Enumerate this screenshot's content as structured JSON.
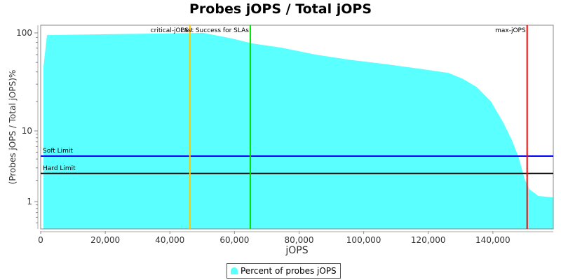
{
  "chart_data": {
    "type": "area",
    "title": "Probes jOPS / Total jOPS",
    "xlabel": "jOPS",
    "ylabel": "(Probes jOPS / Total jOPS)%",
    "xlim": [
      0,
      158700
    ],
    "ylim": [
      0.41,
      120
    ],
    "y_scale": "log",
    "x_ticks": [
      0,
      20000,
      40000,
      60000,
      80000,
      100000,
      120000,
      140000
    ],
    "x_tick_labels": [
      "0",
      "20,000",
      "40,000",
      "60,000",
      "80,000",
      "100,000",
      "120,000",
      "140,000"
    ],
    "y_ticks": [
      1,
      10,
      100
    ],
    "y_tick_labels": [
      "1",
      "10",
      "100"
    ],
    "grid": false,
    "legend_position": "bottom",
    "series": [
      {
        "name": "Percent of probes jOPS",
        "color": "#5affff",
        "x": [
          868,
          1950,
          50400,
          59000,
          65600,
          74300,
          85100,
          96000,
          106800,
          117600,
          126300,
          130700,
          135000,
          139400,
          143300,
          145900,
          148000,
          149800,
          151300,
          154100,
          158700
        ],
        "y": [
          45,
          95,
          100,
          88,
          78,
          71,
          60,
          53,
          48,
          43,
          39,
          34,
          28,
          20,
          12,
          7.4,
          4.2,
          2.1,
          1.5,
          1.2,
          1.15
        ]
      }
    ],
    "vertical_markers": [
      {
        "label": "critical-jOPS",
        "x": 46200,
        "color": "#ffc800"
      },
      {
        "label": "Last Success for SLAs",
        "x": 64900,
        "color": "#00e000"
      },
      {
        "label": "max-jOPS",
        "x": 150600,
        "color": "#ff0000"
      }
    ],
    "horizontal_markers": [
      {
        "label": "Soft Limit",
        "y": 4.4,
        "color": "#0000ff"
      },
      {
        "label": "Hard Limit",
        "y": 2.5,
        "color": "#000000"
      }
    ]
  }
}
